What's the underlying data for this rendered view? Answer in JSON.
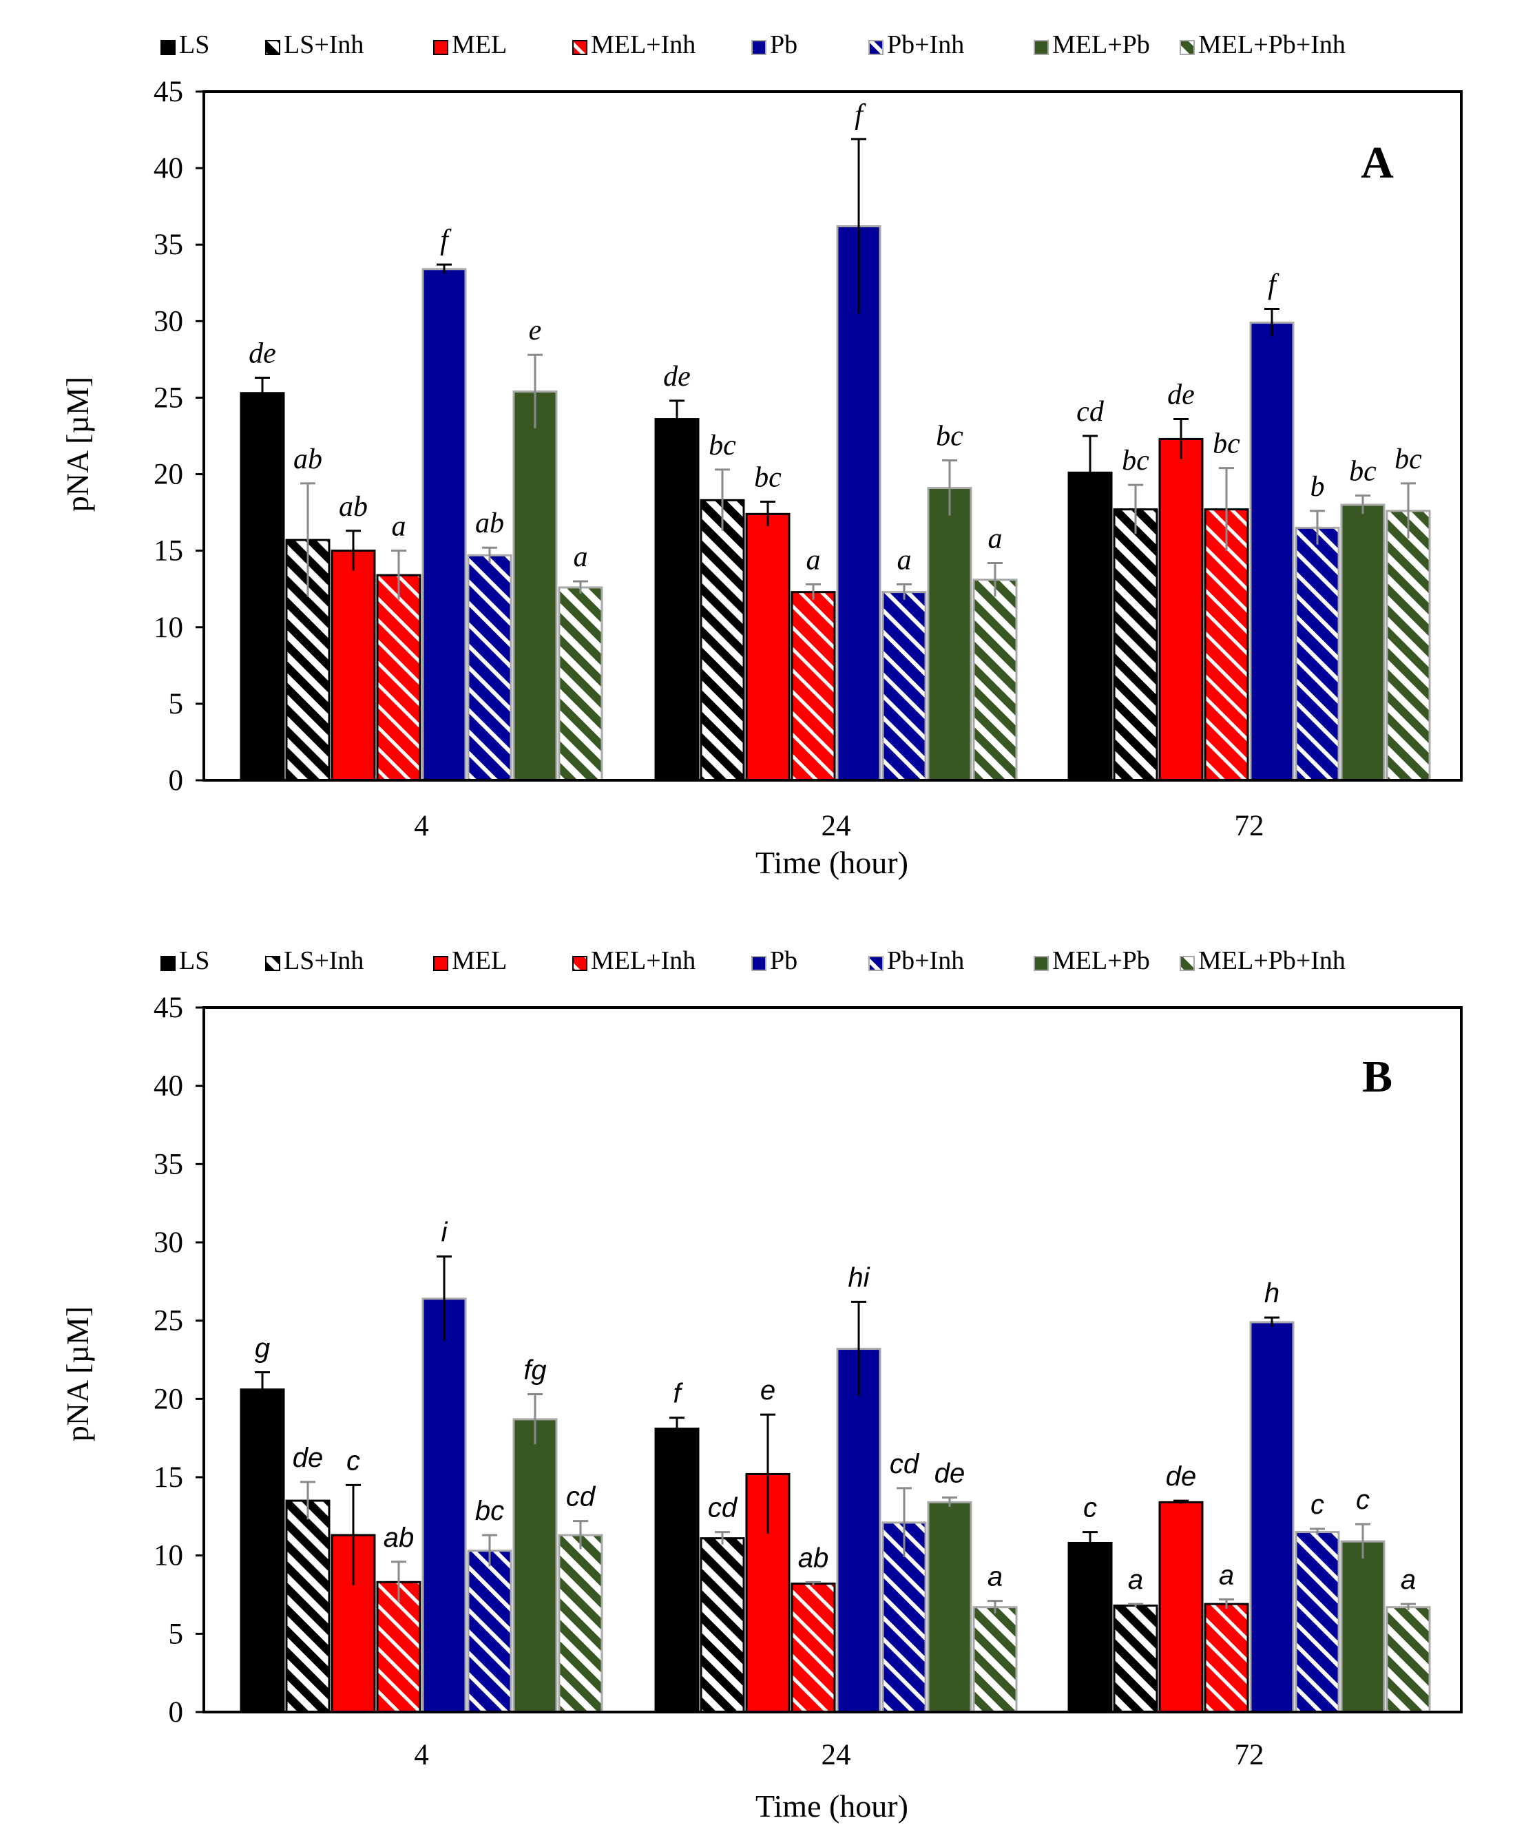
{
  "legend_labels": [
    "LS",
    "LS+Inh",
    "MEL",
    "MEL+Inh",
    "Pb",
    "Pb+Inh",
    "MEL+Pb",
    "MEL+Pb+Inh"
  ],
  "colors": {
    "LS": "#000000",
    "MEL": "#ff0000",
    "Pb": "#000099",
    "MEL+Pb": "#385723",
    "axis": "#000000"
  },
  "chart_data": [
    {
      "type": "bar",
      "panel": "A",
      "title": "",
      "xlabel": "Time (hour)",
      "ylabel": "pNA [µM]",
      "ylim": [
        0,
        45
      ],
      "yticks": [
        "0",
        "5",
        "10",
        "15",
        "20",
        "25",
        "30",
        "35",
        "40",
        "45"
      ],
      "categories": [
        "4",
        "24",
        "72"
      ],
      "series": [
        {
          "name": "LS",
          "values": [
            25.3,
            23.6,
            20.1
          ],
          "errors": [
            1.0,
            1.2,
            2.4
          ],
          "letters": [
            "de",
            "de",
            "cd"
          ]
        },
        {
          "name": "LS+Inh",
          "values": [
            15.7,
            18.3,
            17.7
          ],
          "errors": [
            3.7,
            2.0,
            1.6
          ],
          "letters": [
            "ab",
            "bc",
            "bc"
          ]
        },
        {
          "name": "MEL",
          "values": [
            15.0,
            17.4,
            22.3
          ],
          "errors": [
            1.3,
            0.8,
            1.3
          ],
          "letters": [
            "ab",
            "bc",
            "de"
          ]
        },
        {
          "name": "MEL+Inh",
          "values": [
            13.4,
            12.3,
            17.7
          ],
          "errors": [
            1.6,
            0.5,
            2.7
          ],
          "letters": [
            "a",
            "a",
            "bc"
          ]
        },
        {
          "name": "Pb",
          "values": [
            33.4,
            36.2,
            29.9
          ],
          "errors": [
            0.3,
            5.7,
            0.9
          ],
          "letters": [
            "f",
            "f",
            "f"
          ]
        },
        {
          "name": "Pb+Inh",
          "values": [
            14.7,
            12.3,
            16.5
          ],
          "errors": [
            0.5,
            0.5,
            1.1
          ],
          "letters": [
            "ab",
            "a",
            "b"
          ]
        },
        {
          "name": "MEL+Pb",
          "values": [
            25.4,
            19.1,
            18.0
          ],
          "errors": [
            2.4,
            1.8,
            0.6
          ],
          "letters": [
            "e",
            "bc",
            "bc"
          ]
        },
        {
          "name": "MEL+Pb+Inh",
          "values": [
            12.6,
            13.1,
            17.6
          ],
          "errors": [
            0.4,
            1.1,
            1.8
          ],
          "letters": [
            "a",
            "a",
            "bc"
          ]
        }
      ]
    },
    {
      "type": "bar",
      "panel": "B",
      "title": "",
      "xlabel": "Time (hour)",
      "ylabel": "pNA [µM]",
      "ylim": [
        0,
        45
      ],
      "yticks": [
        "0",
        "5",
        "10",
        "15",
        "20",
        "25",
        "30",
        "35",
        "40",
        "45"
      ],
      "categories": [
        "4",
        "24",
        "72"
      ],
      "series": [
        {
          "name": "LS",
          "values": [
            20.6,
            18.1,
            10.8
          ],
          "errors": [
            1.1,
            0.7,
            0.7
          ],
          "letters": [
            "g",
            "f",
            "c"
          ]
        },
        {
          "name": "LS+Inh",
          "values": [
            13.5,
            11.1,
            6.8
          ],
          "errors": [
            1.2,
            0.4,
            0.1
          ],
          "letters": [
            "de",
            "cd",
            "a"
          ]
        },
        {
          "name": "MEL",
          "values": [
            11.3,
            15.2,
            13.4
          ],
          "errors": [
            3.2,
            3.8,
            0.1
          ],
          "letters": [
            "c",
            "e",
            "de"
          ]
        },
        {
          "name": "MEL+Inh",
          "values": [
            8.3,
            8.2,
            6.9
          ],
          "errors": [
            1.3,
            0.1,
            0.3
          ],
          "letters": [
            "ab",
            "ab",
            "a"
          ]
        },
        {
          "name": "Pb",
          "values": [
            26.4,
            23.2,
            24.9
          ],
          "errors": [
            2.7,
            3.0,
            0.3
          ],
          "letters": [
            "i",
            "hi",
            "h"
          ]
        },
        {
          "name": "Pb+Inh",
          "values": [
            10.3,
            12.1,
            11.5
          ],
          "errors": [
            1.0,
            2.2,
            0.2
          ],
          "letters": [
            "bc",
            "cd",
            "c"
          ]
        },
        {
          "name": "MEL+Pb",
          "values": [
            18.7,
            13.4,
            10.9
          ],
          "errors": [
            1.6,
            0.3,
            1.1
          ],
          "letters": [
            "fg",
            "de",
            "c"
          ]
        },
        {
          "name": "MEL+Pb+Inh",
          "values": [
            11.3,
            6.7,
            6.7
          ],
          "errors": [
            0.9,
            0.4,
            0.2
          ],
          "letters": [
            "cd",
            "a",
            "a"
          ]
        }
      ]
    }
  ]
}
